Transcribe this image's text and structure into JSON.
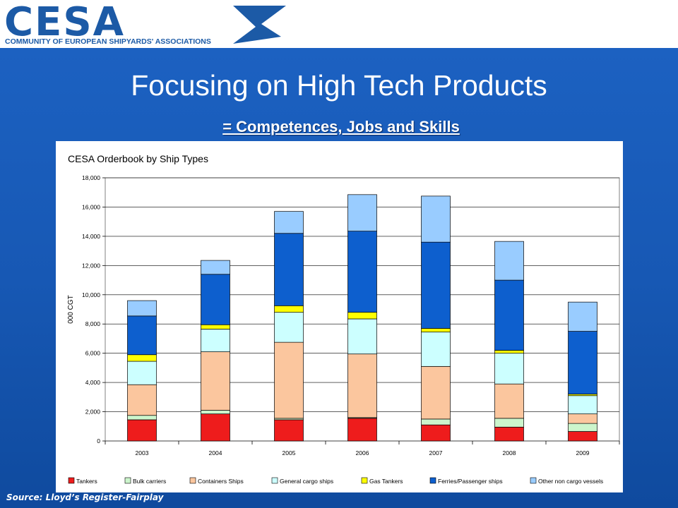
{
  "header": {
    "logo_word": "CESA",
    "logo_subtitle": "COMMUNITY OF EUROPEAN SHIPYARDS' ASSOCIATIONS",
    "brand_color": "#1c5aa6"
  },
  "slide": {
    "title": "Focusing on High Tech Products",
    "subtitle": "= Competences, Jobs and Skills",
    "source": "Source: Lloyd’s Register-Fairplay"
  },
  "chart_data": {
    "type": "bar",
    "stacked": true,
    "title": "CESA Orderbook by Ship Types",
    "xlabel": "",
    "ylabel": "000 CGT",
    "ylim": [
      0,
      18000
    ],
    "yticks": [
      0,
      2000,
      4000,
      6000,
      8000,
      10000,
      12000,
      14000,
      16000,
      18000
    ],
    "ytick_labels": [
      "0",
      "2,000",
      "4,000",
      "6,000",
      "8,000",
      "10,000",
      "12,000",
      "14,000",
      "16,000",
      "18,000"
    ],
    "grid": true,
    "legend_position": "bottom",
    "categories": [
      "2003",
      "2004",
      "2005",
      "2006",
      "2007",
      "2008",
      "2009"
    ],
    "series": [
      {
        "name": "Tankers",
        "color": "#ee1c1c",
        "values": [
          1450,
          1850,
          1450,
          1550,
          1100,
          950,
          650
        ]
      },
      {
        "name": "Bulk carriers",
        "color": "#ccf5cc",
        "values": [
          300,
          250,
          100,
          50,
          400,
          600,
          550
        ]
      },
      {
        "name": "Containers Ships",
        "color": "#fbc69e",
        "values": [
          2100,
          4000,
          5200,
          4350,
          3600,
          2350,
          650
        ]
      },
      {
        "name": "General cargo ships",
        "color": "#ccffff",
        "values": [
          1600,
          1550,
          2050,
          2400,
          2350,
          2100,
          1250
        ]
      },
      {
        "name": "Gas Tankers",
        "color": "#ffff00",
        "values": [
          450,
          300,
          450,
          450,
          250,
          200,
          100
        ]
      },
      {
        "name": "Ferries/Passenger ships",
        "color": "#0d5fce",
        "values": [
          2650,
          3450,
          4950,
          5550,
          5900,
          4800,
          4300
        ]
      },
      {
        "name": "Other non cargo vessels",
        "color": "#99ccff",
        "values": [
          1050,
          950,
          1500,
          2500,
          3150,
          2650,
          2000
        ]
      }
    ]
  }
}
